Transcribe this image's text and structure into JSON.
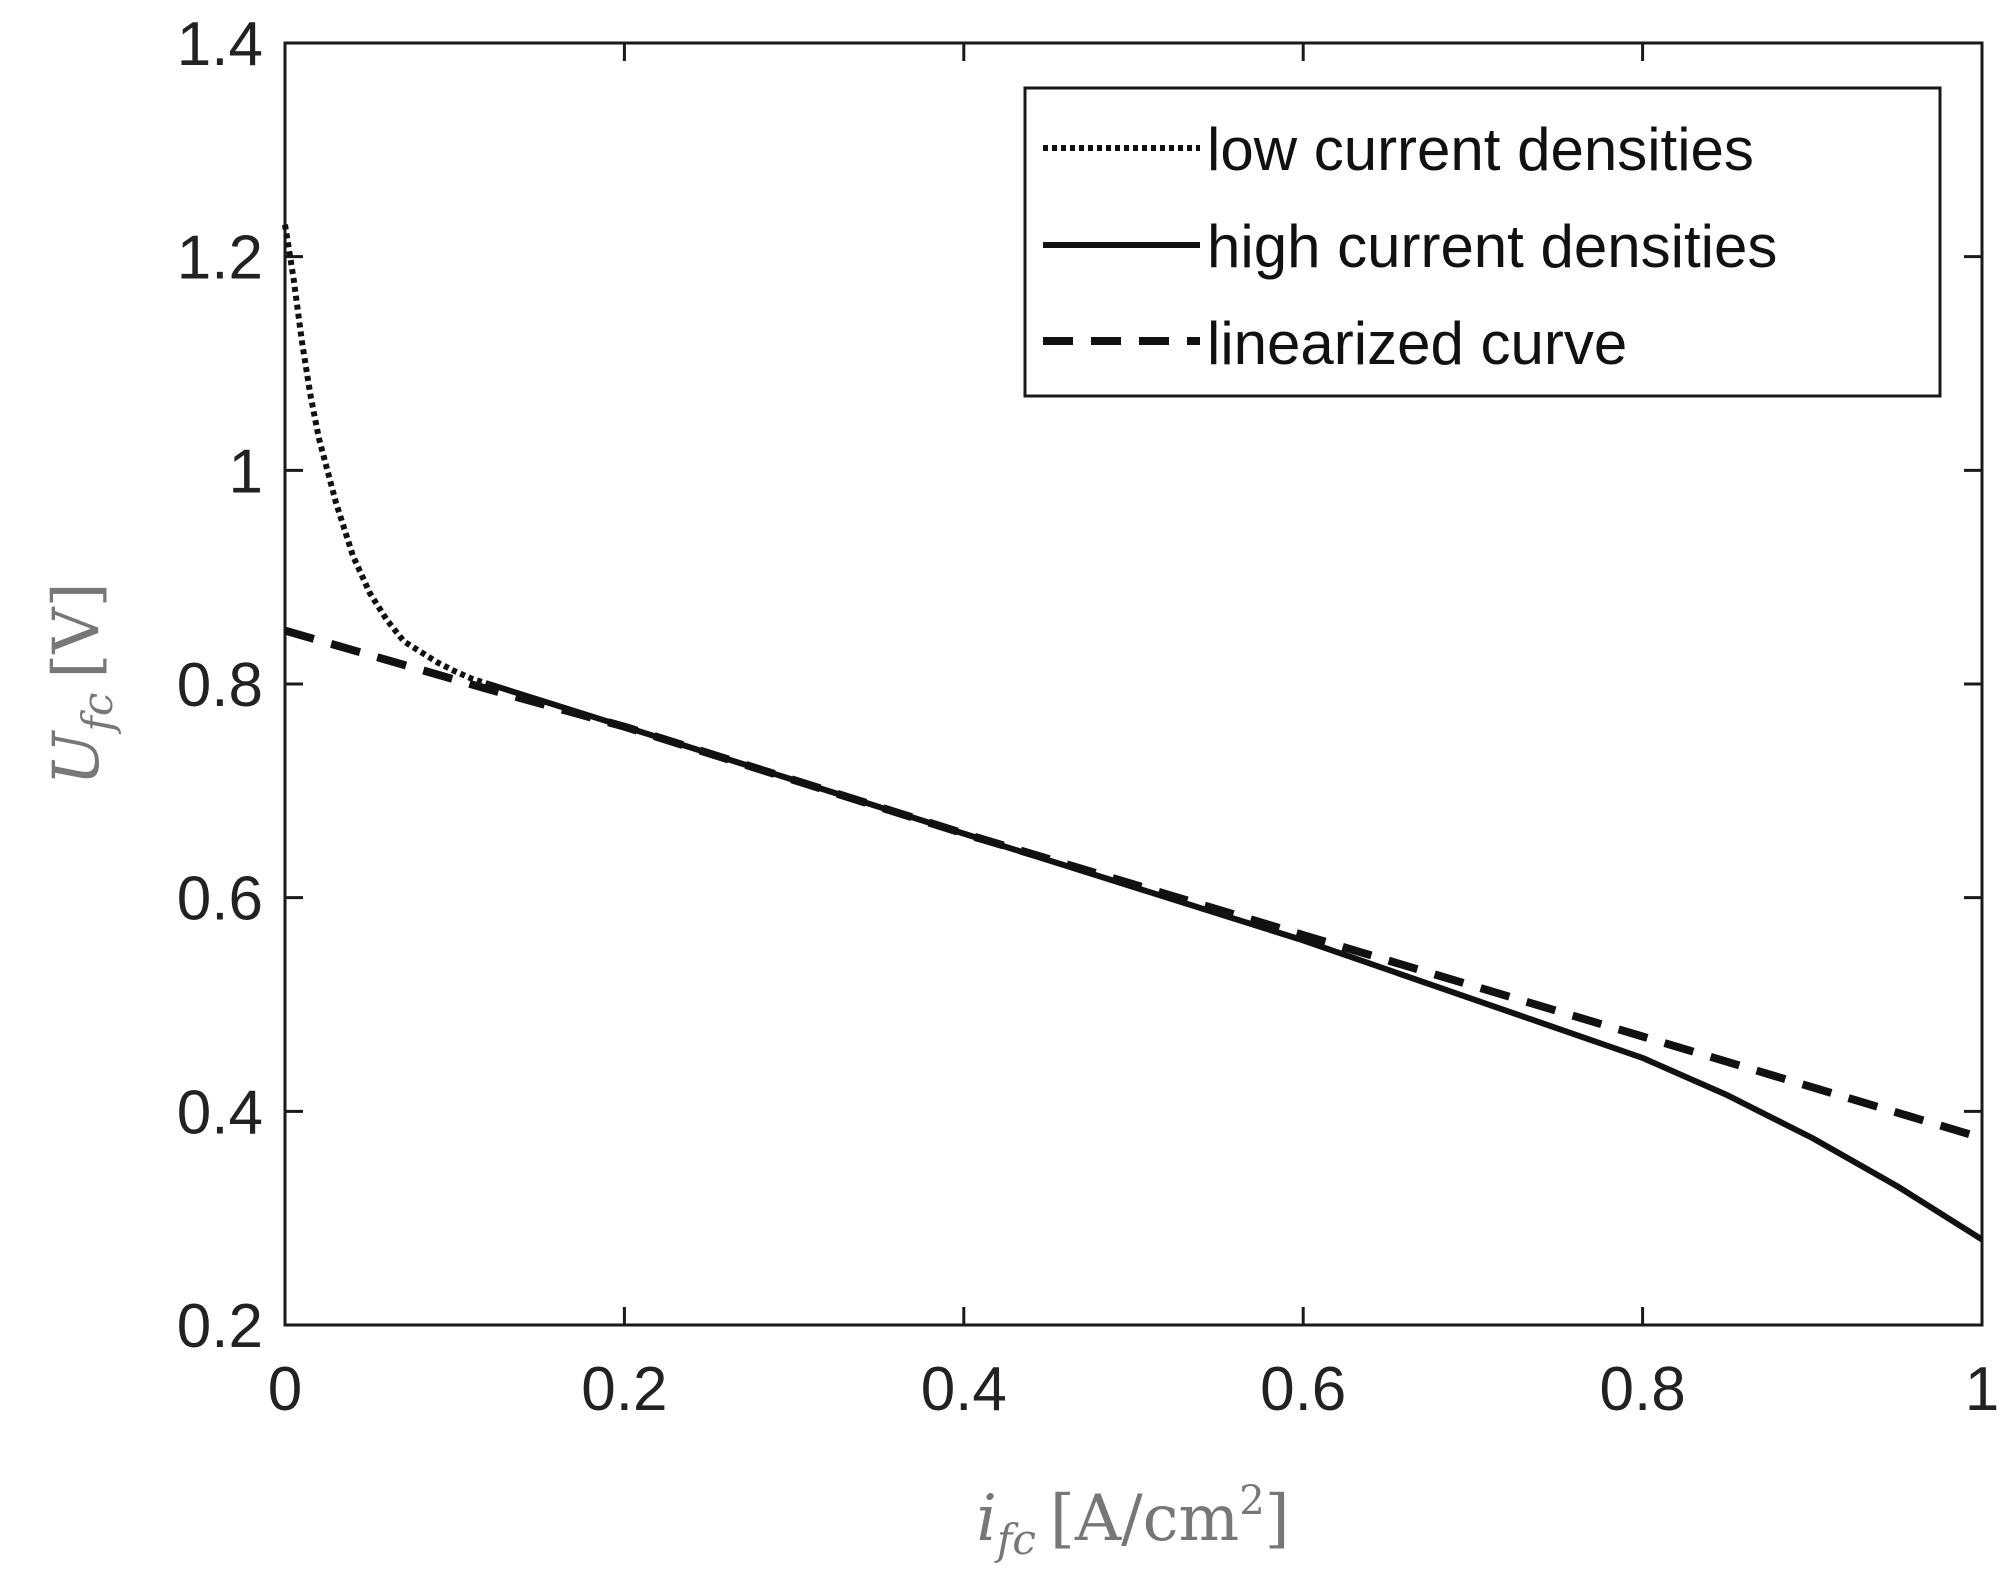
{
  "chart_data": {
    "type": "line",
    "xlabel": {
      "var": "i",
      "sub": "fc",
      "unit": "[A/cm",
      "sup": "2",
      "close": "]"
    },
    "ylabel": {
      "var": "U",
      "sub": "fc",
      "unit": "[V]"
    },
    "xlim": [
      0,
      1
    ],
    "ylim": [
      0.2,
      1.4
    ],
    "xticks": [
      0,
      0.2,
      0.4,
      0.6,
      0.8,
      1
    ],
    "xtick_labels": [
      "0",
      "0.2",
      "0.4",
      "0.6",
      "0.8",
      "1"
    ],
    "yticks": [
      0.2,
      0.4,
      0.6,
      0.8,
      1,
      1.2,
      1.4
    ],
    "ytick_labels": [
      "0.2",
      "0.4",
      "0.6",
      "0.8",
      "1",
      "1.2",
      "1.4"
    ],
    "legend_position": "top-right",
    "series": [
      {
        "name": "low current densities",
        "style": "dotted",
        "x": [
          0,
          0.005,
          0.01,
          0.015,
          0.02,
          0.03,
          0.04,
          0.05,
          0.06,
          0.07,
          0.08,
          0.09,
          0.1,
          0.11,
          0.12
        ],
        "y": [
          1.23,
          1.18,
          1.12,
          1.07,
          1.03,
          0.97,
          0.92,
          0.885,
          0.86,
          0.84,
          0.83,
          0.82,
          0.812,
          0.805,
          0.8
        ]
      },
      {
        "name": "high current densities",
        "style": "solid",
        "x": [
          0.12,
          0.2,
          0.3,
          0.4,
          0.5,
          0.6,
          0.7,
          0.8,
          0.85,
          0.9,
          0.95,
          1.0
        ],
        "y": [
          0.8,
          0.76,
          0.71,
          0.66,
          0.61,
          0.56,
          0.505,
          0.45,
          0.415,
          0.375,
          0.33,
          0.28
        ]
      },
      {
        "name": "linearized curve",
        "style": "dashed",
        "x": [
          0,
          0.12,
          0.2,
          0.4,
          0.6,
          0.8,
          1.0
        ],
        "y": [
          0.85,
          0.795,
          0.76,
          0.66,
          0.565,
          0.47,
          0.375
        ]
      }
    ]
  }
}
